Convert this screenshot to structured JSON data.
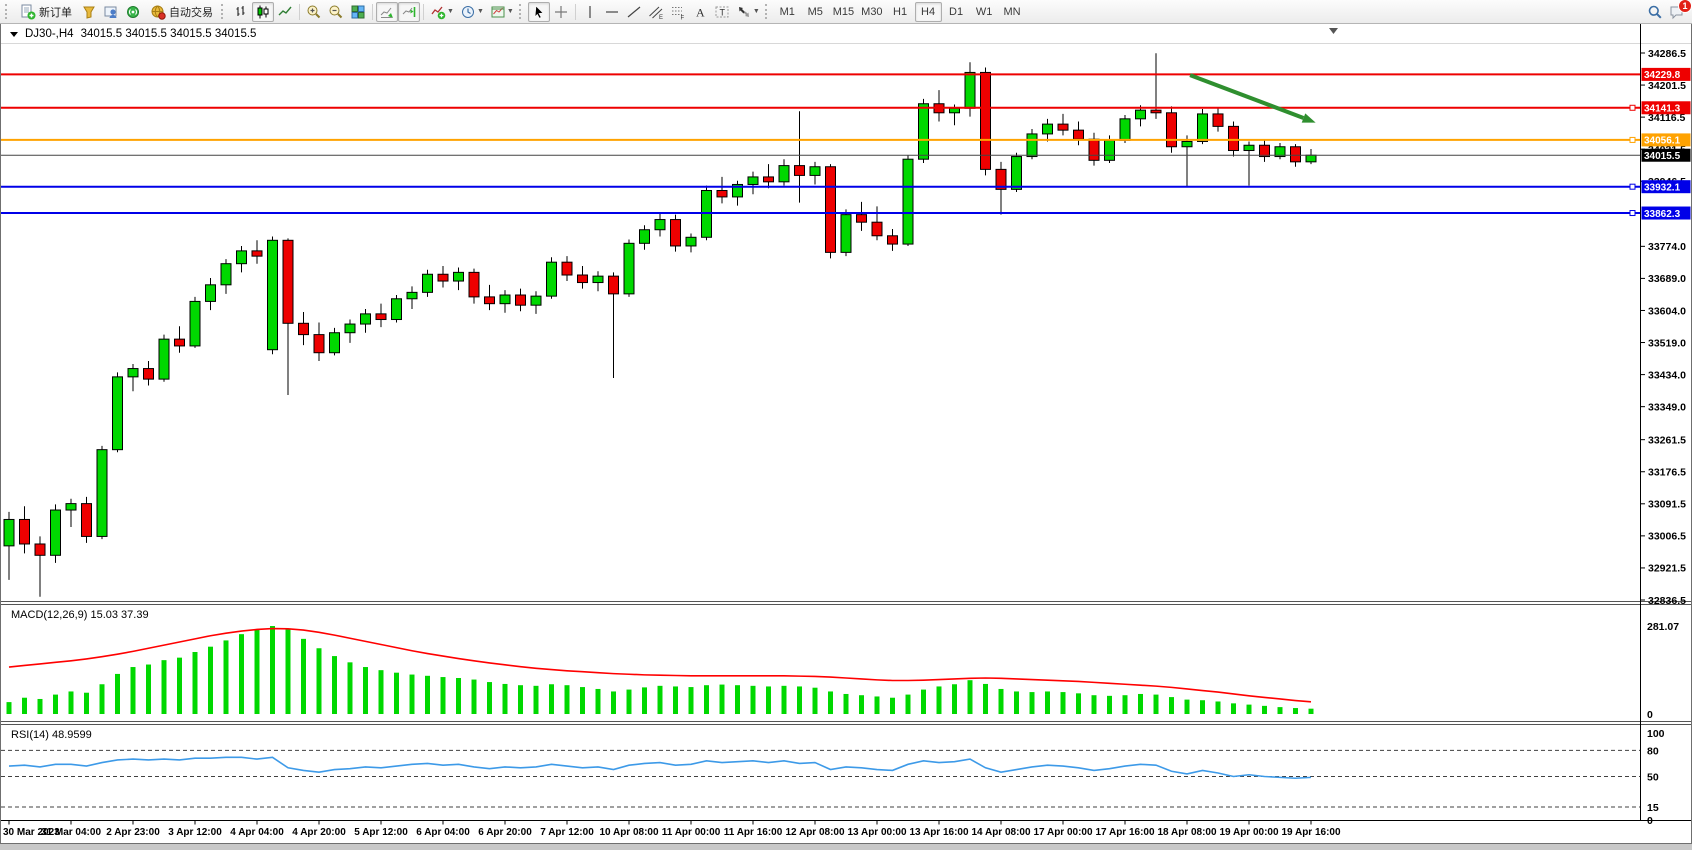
{
  "toolbar": {
    "new_order": "新订单",
    "auto_trading": "自动交易",
    "timeframes": [
      "M1",
      "M5",
      "M15",
      "M30",
      "H1",
      "H4",
      "D1",
      "W1",
      "MN"
    ],
    "active_timeframe": "H4",
    "notification_badge": "1"
  },
  "chart": {
    "title_symbol": "DJ30-,H4",
    "title_quotes": "34015.5 34015.5 34015.5 34015.5",
    "macd_label": "MACD(12,26,9) 15.03 37.39",
    "rsi_label": "RSI(14) 48.9599"
  },
  "chart_data": {
    "type": "candlestick",
    "symbol": "DJ30-",
    "timeframe": "H4",
    "current_price": 34015.5,
    "price_axis_ticks": [
      34286.5,
      34201.5,
      34116.5,
      34031.5,
      33946.5,
      33774.0,
      33689.0,
      33604.0,
      33519.0,
      33434.0,
      33349.0,
      33261.5,
      33176.5,
      33091.5,
      33006.5,
      32921.5,
      32836.5
    ],
    "x_labels": [
      "30 Mar 2023",
      "31 Mar 04:00",
      "2 Apr 23:00",
      "3 Apr 12:00",
      "4 Apr 04:00",
      "4 Apr 20:00",
      "5 Apr 12:00",
      "6 Apr 04:00",
      "6 Apr 20:00",
      "7 Apr 12:00",
      "10 Apr 08:00",
      "11 Apr 00:00",
      "11 Apr 16:00",
      "12 Apr 08:00",
      "13 Apr 00:00",
      "13 Apr 16:00",
      "14 Apr 08:00",
      "17 Apr 00:00",
      "17 Apr 16:00",
      "18 Apr 08:00",
      "19 Apr 00:00",
      "19 Apr 16:00"
    ],
    "x_label_every": 4,
    "levels": [
      {
        "price": 34229.8,
        "color": "#ee0000",
        "width": 2,
        "handle": false
      },
      {
        "price": 34141.3,
        "color": "#ee0000",
        "width": 2,
        "handle": true
      },
      {
        "price": 34056.1,
        "color": "#ffa200",
        "width": 2,
        "handle": true
      },
      {
        "price": 34015.5,
        "color": "#444444",
        "width": 1,
        "handle": false,
        "current": true,
        "badge": "#000000"
      },
      {
        "price": 33932.1,
        "color": "#0000e8",
        "width": 2,
        "handle": true
      },
      {
        "price": 33862.3,
        "color": "#0000e8",
        "width": 2,
        "handle": true
      }
    ],
    "candles": [
      [
        32980,
        33070,
        32890,
        33050
      ],
      [
        33050,
        33085,
        32960,
        32985
      ],
      [
        32985,
        33005,
        32845,
        32955
      ],
      [
        32955,
        33090,
        32935,
        33075
      ],
      [
        33075,
        33105,
        33030,
        33092
      ],
      [
        33092,
        33110,
        32988,
        33005
      ],
      [
        33005,
        33245,
        32998,
        33235
      ],
      [
        33235,
        33440,
        33228,
        33428
      ],
      [
        33428,
        33462,
        33390,
        33450
      ],
      [
        33450,
        33470,
        33405,
        33422
      ],
      [
        33422,
        33540,
        33415,
        33528
      ],
      [
        33528,
        33562,
        33492,
        33510
      ],
      [
        33510,
        33640,
        33505,
        33628
      ],
      [
        33628,
        33690,
        33605,
        33672
      ],
      [
        33672,
        33740,
        33648,
        33728
      ],
      [
        33728,
        33775,
        33705,
        33762
      ],
      [
        33762,
        33790,
        33728,
        33748
      ],
      [
        33500,
        33800,
        33488,
        33790
      ],
      [
        33790,
        33795,
        33380,
        33570
      ],
      [
        33570,
        33600,
        33512,
        33540
      ],
      [
        33540,
        33572,
        33470,
        33492
      ],
      [
        33492,
        33558,
        33485,
        33545
      ],
      [
        33545,
        33580,
        33518,
        33568
      ],
      [
        33568,
        33608,
        33545,
        33595
      ],
      [
        33595,
        33622,
        33560,
        33580
      ],
      [
        33580,
        33645,
        33572,
        33635
      ],
      [
        33635,
        33668,
        33608,
        33652
      ],
      [
        33652,
        33712,
        33640,
        33700
      ],
      [
        33700,
        33722,
        33665,
        33682
      ],
      [
        33682,
        33718,
        33658,
        33705
      ],
      [
        33705,
        33715,
        33622,
        33640
      ],
      [
        33640,
        33672,
        33605,
        33622
      ],
      [
        33622,
        33658,
        33598,
        33645
      ],
      [
        33645,
        33662,
        33602,
        33618
      ],
      [
        33618,
        33655,
        33595,
        33642
      ],
      [
        33642,
        33745,
        33635,
        33732
      ],
      [
        33732,
        33748,
        33682,
        33698
      ],
      [
        33698,
        33722,
        33662,
        33678
      ],
      [
        33678,
        33708,
        33655,
        33695
      ],
      [
        33695,
        33705,
        33425,
        33648
      ],
      [
        33648,
        33792,
        33640,
        33782
      ],
      [
        33782,
        33830,
        33765,
        33818
      ],
      [
        33818,
        33862,
        33800,
        33845
      ],
      [
        33845,
        33858,
        33760,
        33775
      ],
      [
        33775,
        33808,
        33758,
        33798
      ],
      [
        33798,
        33935,
        33790,
        33922
      ],
      [
        33922,
        33958,
        33888,
        33905
      ],
      [
        33905,
        33948,
        33882,
        33938
      ],
      [
        33938,
        33972,
        33912,
        33958
      ],
      [
        33958,
        33992,
        33928,
        33945
      ],
      [
        33945,
        34005,
        33935,
        33988
      ],
      [
        33988,
        34132,
        33890,
        33962
      ],
      [
        33962,
        33998,
        33938,
        33985
      ],
      [
        33985,
        33992,
        33742,
        33758
      ],
      [
        33758,
        33872,
        33748,
        33858
      ],
      [
        33858,
        33892,
        33815,
        33838
      ],
      [
        33838,
        33880,
        33790,
        33802
      ],
      [
        33802,
        33820,
        33762,
        33780
      ],
      [
        33780,
        34015,
        33775,
        34005
      ],
      [
        34005,
        34165,
        33995,
        34152
      ],
      [
        34152,
        34188,
        34105,
        34128
      ],
      [
        34128,
        34150,
        34095,
        34140
      ],
      [
        34140,
        34262,
        34118,
        34235
      ],
      [
        34235,
        34248,
        33962,
        33978
      ],
      [
        33978,
        33998,
        33858,
        33925
      ],
      [
        33925,
        34022,
        33918,
        34012
      ],
      [
        34012,
        34085,
        34005,
        34072
      ],
      [
        34072,
        34112,
        34052,
        34098
      ],
      [
        34098,
        34125,
        34068,
        34082
      ],
      [
        34082,
        34105,
        34042,
        34058
      ],
      [
        34058,
        34075,
        33988,
        34002
      ],
      [
        34002,
        34068,
        33995,
        34055
      ],
      [
        34055,
        34122,
        34048,
        34112
      ],
      [
        34112,
        34148,
        34092,
        34135
      ],
      [
        34135,
        34286,
        34112,
        34128
      ],
      [
        34128,
        34145,
        34022,
        34038
      ],
      [
        34038,
        34068,
        33932,
        34052
      ],
      [
        34052,
        34138,
        34045,
        34125
      ],
      [
        34125,
        34142,
        34078,
        34092
      ],
      [
        34092,
        34105,
        34012,
        34028
      ],
      [
        34028,
        34052,
        33935,
        34042
      ],
      [
        34042,
        34058,
        33998,
        34012
      ],
      [
        34012,
        34048,
        34005,
        34038
      ],
      [
        34038,
        34045,
        33985,
        33998
      ],
      [
        33998,
        34032,
        33992,
        34015.5
      ]
    ],
    "macd": {
      "params": "12,26,9",
      "current_values": [
        15.03,
        37.39
      ],
      "axis_max": 281.07,
      "axis_min": 0,
      "histogram": [
        38,
        52,
        48,
        62,
        72,
        68,
        95,
        128,
        150,
        158,
        172,
        180,
        198,
        215,
        235,
        255,
        270,
        281,
        272,
        240,
        210,
        185,
        165,
        150,
        140,
        132,
        126,
        122,
        118,
        115,
        110,
        102,
        96,
        92,
        90,
        95,
        92,
        86,
        80,
        72,
        78,
        85,
        90,
        88,
        86,
        92,
        94,
        92,
        90,
        88,
        90,
        88,
        84,
        72,
        64,
        60,
        56,
        52,
        62,
        78,
        88,
        95,
        108,
        96,
        80,
        72,
        70,
        72,
        70,
        66,
        60,
        58,
        60,
        64,
        62,
        54,
        46,
        44,
        40,
        34,
        30,
        26,
        22,
        19,
        17
      ],
      "signal": [
        150,
        155,
        160,
        165,
        170,
        176,
        183,
        191,
        200,
        210,
        220,
        230,
        240,
        250,
        258,
        265,
        270,
        273,
        272,
        268,
        261,
        252,
        242,
        232,
        222,
        212,
        202,
        193,
        185,
        177,
        170,
        163,
        157,
        151,
        146,
        142,
        138,
        135,
        132,
        129,
        127,
        125,
        124,
        123,
        122,
        122,
        122,
        122,
        122,
        122,
        122,
        121,
        120,
        118,
        115,
        112,
        109,
        107,
        107,
        108,
        110,
        112,
        114,
        115,
        114,
        112,
        110,
        108,
        106,
        104,
        101,
        98,
        95,
        92,
        89,
        85,
        80,
        75,
        70,
        64,
        58,
        53,
        48,
        43,
        39
      ]
    },
    "rsi": {
      "period": 14,
      "current_value": 48.9599,
      "axis_labels": [
        100,
        80,
        50,
        15,
        0
      ],
      "dashed_levels": [
        80,
        50,
        15
      ],
      "series": [
        62,
        63,
        61,
        64,
        64,
        62,
        66,
        69,
        70,
        69,
        70,
        69,
        71,
        71,
        72,
        72,
        70,
        72,
        60,
        57,
        55,
        58,
        59,
        61,
        60,
        62,
        64,
        65,
        63,
        64,
        61,
        59,
        61,
        60,
        61,
        64,
        62,
        60,
        61,
        58,
        63,
        65,
        66,
        63,
        64,
        68,
        66,
        67,
        68,
        66,
        68,
        65,
        66,
        58,
        61,
        60,
        58,
        57,
        64,
        68,
        66,
        67,
        70,
        60,
        55,
        58,
        61,
        63,
        62,
        60,
        57,
        59,
        62,
        64,
        63,
        56,
        53,
        57,
        54,
        50,
        52,
        50,
        49,
        48,
        49
      ]
    },
    "annotation_arrow": {
      "from_index": 76.2,
      "from_price": 34228,
      "to_index": 84.3,
      "to_price": 34102,
      "color": "#2f8f2f"
    },
    "colors": {
      "bull": "#00d800",
      "bear": "#ee0000",
      "outline": "#000000",
      "macd_hist": "#00d800",
      "macd_signal": "#ff0000",
      "rsi_line": "#3d9ae8",
      "axis_text": "#000000",
      "background": "#ffffff"
    }
  }
}
